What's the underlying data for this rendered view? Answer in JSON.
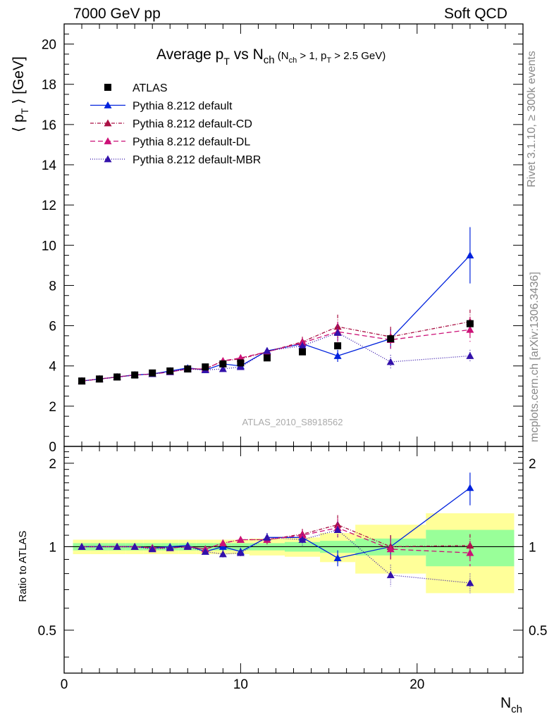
{
  "header": {
    "left": "7000 GeV pp",
    "right": "Soft QCD"
  },
  "side_labels": {
    "rivet": "Rivet 3.1.10, ≥ 300k events",
    "mcplots": "mcplots.cern.ch [arXiv:1306.3436]"
  },
  "chart_data": {
    "type": "scatter",
    "title": {
      "main": "Average p",
      "main_sub": "T",
      "vs": " vs N",
      "vs_sub": "ch",
      "cut_open": " (N",
      "cut_sub1": "ch",
      "cut_mid": " > 1, p",
      "cut_sub2": "T",
      "cut_end": " > 2.5 GeV)"
    },
    "xlabel": {
      "main": "N",
      "sub": "ch"
    },
    "ylabel": {
      "open": "⟨ p",
      "sub": "T",
      "close": " ⟩  [GeV]"
    },
    "ratio_ylabel": "Ratio to ATLAS",
    "watermark": "ATLAS_2010_S8918562",
    "xlim": [
      0,
      26
    ],
    "ylim": [
      0,
      21
    ],
    "ratio_ylim": [
      0.35,
      2.3
    ],
    "x_ticks": [
      "0",
      "10",
      "20"
    ],
    "y_ticks": [
      "0",
      "2",
      "4",
      "6",
      "8",
      "10",
      "12",
      "14",
      "16",
      "18",
      "20"
    ],
    "ratio_ticks": [
      "0.5",
      "1",
      "2"
    ],
    "data": {
      "name": "ATLAS",
      "x": [
        1,
        2,
        3,
        4,
        5,
        6,
        7,
        8,
        9,
        10,
        11.5,
        13.5,
        15.5,
        18.5,
        23
      ],
      "y": [
        3.25,
        3.35,
        3.45,
        3.55,
        3.65,
        3.75,
        3.85,
        3.95,
        4.1,
        4.15,
        4.4,
        4.7,
        5.0,
        5.35,
        6.1
      ],
      "band_edges": [
        0.5,
        1.5,
        2.5,
        3.5,
        4.5,
        5.5,
        6.5,
        7.5,
        8.5,
        9.5,
        10.5,
        12.5,
        14.5,
        16.5,
        20.5,
        25.5
      ],
      "band_inner": [
        0.03,
        0.03,
        0.03,
        0.03,
        0.03,
        0.03,
        0.03,
        0.03,
        0.03,
        0.03,
        0.03,
        0.04,
        0.05,
        0.07,
        0.15
      ],
      "band_outer": [
        0.06,
        0.06,
        0.06,
        0.06,
        0.06,
        0.06,
        0.06,
        0.06,
        0.06,
        0.06,
        0.07,
        0.08,
        0.12,
        0.2,
        0.32
      ]
    },
    "series": [
      {
        "name": "Pythia 8.212 default",
        "color": "#0022dd",
        "dash": "",
        "x": [
          1,
          2,
          3,
          4,
          5,
          6,
          7,
          8,
          9,
          10,
          11.5,
          13.5,
          15.5,
          18.5,
          23
        ],
        "y": [
          3.25,
          3.35,
          3.45,
          3.55,
          3.6,
          3.75,
          3.9,
          3.8,
          4.1,
          4.0,
          4.75,
          5.1,
          4.5,
          5.35,
          9.5
        ],
        "err": [
          0.05,
          0.05,
          0.05,
          0.05,
          0.05,
          0.05,
          0.05,
          0.08,
          0.1,
          0.12,
          0.15,
          0.2,
          0.3,
          0.5,
          1.4
        ],
        "ratio": [
          1.0,
          1.0,
          1.0,
          1.0,
          0.99,
          1.0,
          1.01,
          0.96,
          1.0,
          0.96,
          1.08,
          1.08,
          0.91,
          1.0,
          1.63
        ],
        "ratio_err": [
          0.01,
          0.01,
          0.01,
          0.01,
          0.01,
          0.01,
          0.02,
          0.02,
          0.03,
          0.03,
          0.04,
          0.05,
          0.06,
          0.1,
          0.22
        ]
      },
      {
        "name": "Pythia 8.212 default-CD",
        "color": "#aa1144",
        "dash": "5,2,1,2",
        "x": [
          1,
          2,
          3,
          4,
          5,
          6,
          7,
          8,
          9,
          10,
          11.5,
          13.5,
          15.5,
          18.5,
          23
        ],
        "y": [
          3.25,
          3.35,
          3.45,
          3.55,
          3.6,
          3.7,
          3.85,
          3.85,
          4.25,
          4.35,
          4.7,
          5.2,
          5.95,
          5.45,
          6.2
        ],
        "err": [
          0.05,
          0.05,
          0.05,
          0.05,
          0.05,
          0.05,
          0.05,
          0.08,
          0.1,
          0.12,
          0.15,
          0.25,
          0.6,
          0.5,
          0.6
        ],
        "ratio": [
          1.0,
          1.0,
          1.0,
          1.0,
          0.99,
          0.99,
          1.0,
          0.98,
          1.03,
          1.06,
          1.06,
          1.11,
          1.2,
          1.0,
          1.01
        ],
        "ratio_err": [
          0.01,
          0.01,
          0.01,
          0.01,
          0.01,
          0.01,
          0.02,
          0.02,
          0.03,
          0.03,
          0.04,
          0.05,
          0.1,
          0.1,
          0.1
        ]
      },
      {
        "name": "Pythia 8.212 default-DL",
        "color": "#cc1177",
        "dash": "7,4",
        "x": [
          1,
          2,
          3,
          4,
          5,
          6,
          7,
          8,
          9,
          10,
          11.5,
          13.5,
          15.5,
          18.5,
          23
        ],
        "y": [
          3.25,
          3.35,
          3.45,
          3.55,
          3.6,
          3.7,
          3.85,
          3.85,
          4.25,
          4.4,
          4.7,
          5.15,
          5.7,
          5.3,
          5.8
        ],
        "err": [
          0.05,
          0.05,
          0.05,
          0.05,
          0.05,
          0.05,
          0.05,
          0.08,
          0.1,
          0.12,
          0.15,
          0.25,
          0.5,
          0.45,
          0.6
        ],
        "ratio": [
          1.0,
          1.0,
          1.0,
          1.0,
          0.99,
          0.99,
          1.0,
          0.98,
          1.03,
          1.06,
          1.06,
          1.1,
          1.17,
          0.98,
          0.95
        ],
        "ratio_err": [
          0.01,
          0.01,
          0.01,
          0.01,
          0.01,
          0.01,
          0.02,
          0.02,
          0.03,
          0.03,
          0.04,
          0.05,
          0.09,
          0.09,
          0.1
        ]
      },
      {
        "name": "Pythia 8.212 default-MBR",
        "color": "#3311aa",
        "dash": "1,2",
        "x": [
          1,
          2,
          3,
          4,
          5,
          6,
          7,
          8,
          9,
          10,
          11.5,
          13.5,
          15.5,
          18.5,
          23
        ],
        "y": [
          3.25,
          3.35,
          3.45,
          3.55,
          3.6,
          3.7,
          3.85,
          3.8,
          3.85,
          3.95,
          4.75,
          5.0,
          5.65,
          4.2,
          4.5
        ],
        "err": [
          0.05,
          0.05,
          0.05,
          0.05,
          0.05,
          0.05,
          0.05,
          0.08,
          0.1,
          0.12,
          0.15,
          0.2,
          0.4,
          0.35,
          0.3
        ],
        "ratio": [
          1.0,
          1.0,
          1.0,
          1.0,
          0.98,
          0.99,
          1.0,
          0.96,
          0.94,
          0.95,
          1.08,
          1.06,
          1.15,
          0.79,
          0.74
        ],
        "ratio_err": [
          0.01,
          0.01,
          0.01,
          0.01,
          0.01,
          0.01,
          0.02,
          0.02,
          0.03,
          0.03,
          0.04,
          0.05,
          0.08,
          0.07,
          0.06
        ]
      }
    ]
  }
}
